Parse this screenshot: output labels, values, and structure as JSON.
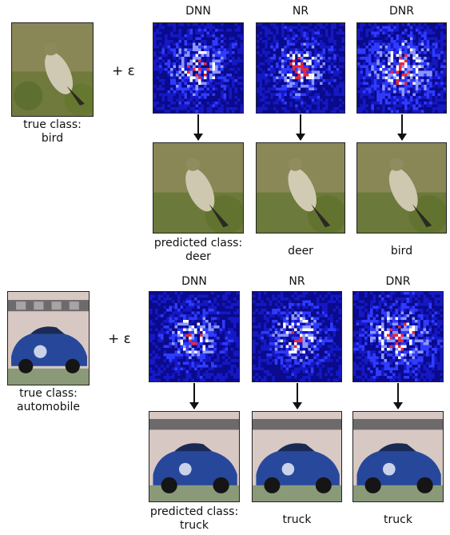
{
  "examples": [
    {
      "id": "bird",
      "true_label": [
        "true class:",
        "bird"
      ],
      "perturbation_label": "+ ε",
      "models": [
        {
          "name": "DNN",
          "prediction": [
            "predicted class:",
            "deer"
          ]
        },
        {
          "name": "NR",
          "prediction": [
            "deer"
          ]
        },
        {
          "name": "DNR",
          "prediction": [
            "bird"
          ]
        }
      ]
    },
    {
      "id": "automobile",
      "true_label": [
        "true class:",
        "automobile"
      ],
      "perturbation_label": "+ ε",
      "models": [
        {
          "name": "DNN",
          "prediction": [
            "predicted class:",
            "truck"
          ]
        },
        {
          "name": "NR",
          "prediction": [
            "truck"
          ]
        },
        {
          "name": "DNR",
          "prediction": [
            "truck"
          ]
        }
      ]
    }
  ],
  "colors": {
    "noise_background": "#0a0a8c",
    "noise_mid": "#2f3bff",
    "noise_high": "#ffffff",
    "noise_peak": "#e8283a",
    "bird_background": "#7a7a4a",
    "car_body": "#27489a"
  }
}
